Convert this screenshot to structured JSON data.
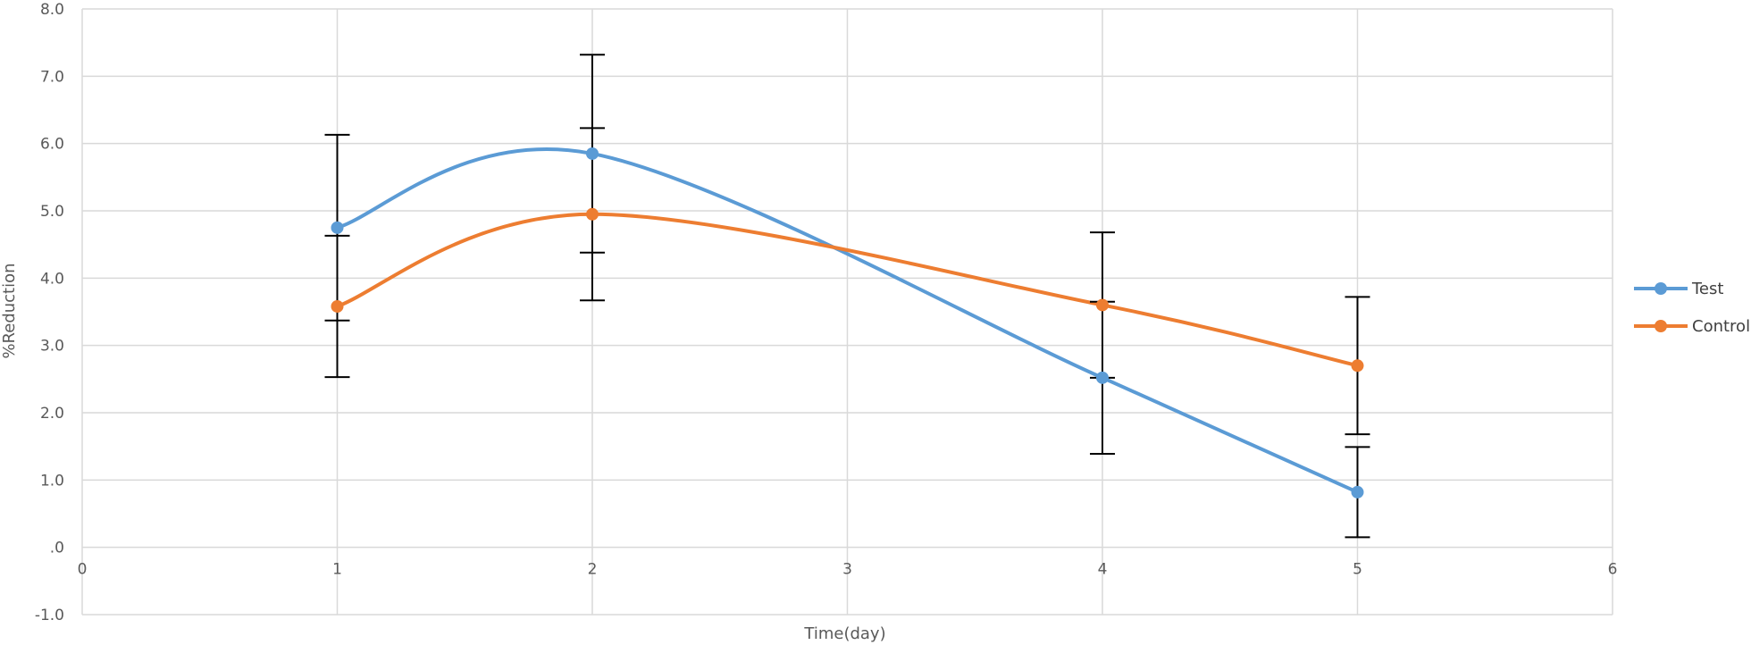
{
  "chart_data": {
    "type": "scatter",
    "title": "",
    "xlabel": "Time(day)",
    "ylabel": "%Reduction",
    "xlim": [
      0,
      6
    ],
    "ylim": [
      -1,
      8
    ],
    "x_ticks": [
      "0",
      "1",
      "2",
      "3",
      "4",
      "5",
      "6"
    ],
    "y_ticks": [
      "-1.0",
      ".0",
      "1.0",
      "2.0",
      "3.0",
      "4.0",
      "5.0",
      "6.0",
      "7.0",
      "8.0"
    ],
    "grid": true,
    "smoothed_lines": true,
    "legend_position": "right",
    "series": [
      {
        "name": "Test",
        "color": "#5B9BD5",
        "x": [
          1,
          2,
          4,
          5
        ],
        "y": [
          4.75,
          5.85,
          2.52,
          0.82
        ],
        "error": [
          1.38,
          1.47,
          1.13,
          0.67
        ]
      },
      {
        "name": "Control",
        "color": "#ED7D31",
        "x": [
          1,
          2,
          4,
          5
        ],
        "y": [
          3.58,
          4.95,
          3.6,
          2.7
        ],
        "error": [
          1.05,
          1.28,
          1.08,
          1.02
        ]
      }
    ]
  }
}
